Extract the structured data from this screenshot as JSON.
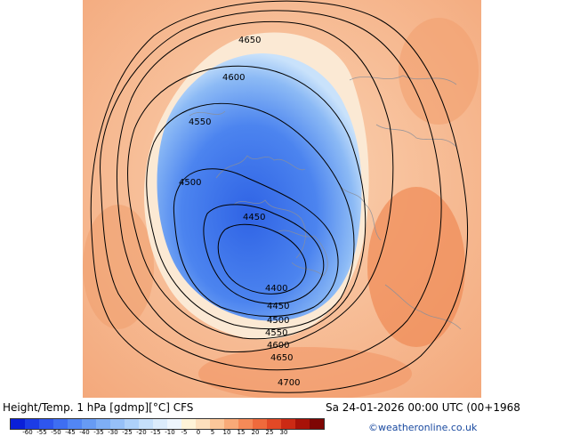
{
  "header": {
    "title": "Height/Temp. 1 hPa [gdmp][°C] CFS",
    "datetime": "Sa 24-01-2026 00:00 UTC (00+1968",
    "credit": "©weatheronline.co.uk"
  },
  "map": {
    "contour_labels": [
      "4650",
      "4600",
      "4550",
      "4500",
      "4450",
      "4400",
      "4450",
      "4500",
      "4550",
      "4600",
      "4650",
      "4700"
    ]
  },
  "colorbar": {
    "ticks": [
      "-60",
      "-55",
      "-50",
      "-45",
      "-40",
      "-35",
      "-30",
      "-25",
      "-20",
      "-15",
      "-10",
      "-5",
      "0",
      "5",
      "10",
      "15",
      "20",
      "25",
      "30"
    ],
    "colors": [
      "#0a1fd8",
      "#1c3ce6",
      "#2e56ee",
      "#3e6ef2",
      "#5286f4",
      "#679bf4",
      "#7eaef6",
      "#96c0f8",
      "#aed1fa",
      "#c6e0fb",
      "#dcecfc",
      "#eef6fd",
      "#fff4d8",
      "#fde0bd",
      "#fcc79a",
      "#f9aa78",
      "#f58a58",
      "#ef6a3c",
      "#e24926",
      "#cc2a14",
      "#a81208",
      "#7e0604"
    ]
  }
}
